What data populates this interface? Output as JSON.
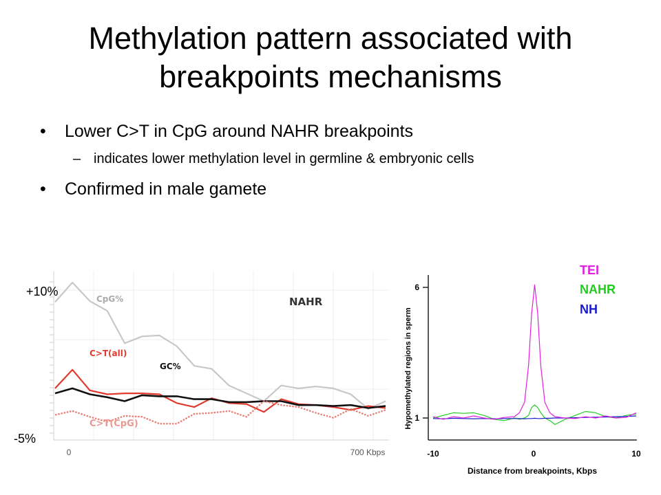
{
  "slide": {
    "title_line1": "Methylation pattern associated with",
    "title_line2": "breakpoints mechanisms",
    "bullets": [
      {
        "text": "Lower C>T in CpG around NAHR breakpoints",
        "sub": "indicates lower methylation level in germline & embryonic cells"
      },
      {
        "text": "Confirmed in male gamete"
      }
    ]
  },
  "chart_data": [
    {
      "type": "line",
      "title": "NAHR",
      "y_top_label": "+10%",
      "y_bottom_label": "-5%",
      "x_start_label": "0",
      "x_end_label": "700 Kbps",
      "grid": true,
      "x": [
        0,
        36.8,
        73.7,
        110.5,
        147.4,
        184.2,
        221.1,
        257.9,
        294.7,
        331.6,
        368.4,
        405.3,
        442.1,
        478.9,
        515.8,
        552.6,
        589.5,
        626.3,
        663.2,
        700
      ],
      "series": [
        {
          "name": "CpG%",
          "color": "#c8c8c8",
          "dashed": false,
          "values": [
            8.5,
            10.5,
            8.6,
            7.6,
            4.3,
            5.0,
            5.1,
            4.0,
            2.0,
            1.7,
            0.0,
            -0.8,
            -1.6,
            0.0,
            -0.3,
            -0.1,
            -0.3,
            -0.9,
            -2.4,
            -1.6
          ]
        },
        {
          "name": "C>T(all)",
          "color": "#e03a2e",
          "dashed": false,
          "values": [
            -0.3,
            1.6,
            -0.5,
            -0.9,
            -0.8,
            -0.8,
            -0.9,
            -1.8,
            -2.2,
            -1.3,
            -1.8,
            -1.9,
            -2.7,
            -1.4,
            -1.9,
            -2.0,
            -2.2,
            -2.5,
            -2.1,
            -2.3
          ]
        },
        {
          "name": "GC%",
          "color": "#111111",
          "dashed": false,
          "values": [
            -0.8,
            -0.3,
            -0.9,
            -1.2,
            -1.6,
            -1.0,
            -1.1,
            -1.1,
            -1.4,
            -1.4,
            -1.7,
            -1.7,
            -1.6,
            -1.6,
            -2.0,
            -2.0,
            -2.1,
            -2.0,
            -2.3,
            -2.1
          ]
        },
        {
          "name": "C>T(CpG)",
          "color": "#e87a70",
          "dashed": true,
          "values": [
            -3.0,
            -2.6,
            -3.2,
            -3.7,
            -3.1,
            -3.2,
            -3.9,
            -3.9,
            -2.9,
            -2.8,
            -2.6,
            -3.2,
            -1.6,
            -2.0,
            -2.2,
            -2.8,
            -3.3,
            -2.4,
            -3.1,
            -2.5
          ]
        }
      ]
    },
    {
      "type": "line",
      "xlabel": "Distance from breakpoints, Kbps",
      "ylabel": "Hypomethylated regions in sperm",
      "x_ticks": [
        "-10",
        "0",
        "10"
      ],
      "y_ticks": [
        "1",
        "6"
      ],
      "x": [
        -10,
        -9,
        -8,
        -7,
        -6,
        -5,
        -4,
        -3,
        -2,
        -1.5,
        -1,
        -0.6,
        -0.3,
        0,
        0.3,
        0.6,
        1,
        1.5,
        2,
        3,
        4,
        5,
        6,
        7,
        8,
        9,
        10
      ],
      "series": [
        {
          "name": "TEI",
          "color": "#e020e0",
          "values": [
            1.05,
            0.95,
            1.05,
            1.0,
            1.08,
            1.0,
            0.95,
            1.02,
            1.05,
            1.2,
            1.6,
            3.0,
            5.0,
            6.1,
            5.0,
            3.0,
            1.6,
            1.2,
            1.05,
            1.0,
            0.98,
            1.05,
            1.0,
            1.08,
            1.0,
            1.02,
            1.2
          ]
        },
        {
          "name": "NAHR",
          "color": "#22cc22",
          "values": [
            1.0,
            1.1,
            1.2,
            1.18,
            1.2,
            1.1,
            0.95,
            0.9,
            1.0,
            0.95,
            1.0,
            1.1,
            1.4,
            1.5,
            1.4,
            1.2,
            1.0,
            0.9,
            0.75,
            0.95,
            1.1,
            1.25,
            1.2,
            1.05,
            1.0,
            1.1,
            1.15
          ]
        },
        {
          "name": "NH",
          "color": "#1a1acc",
          "values": [
            0.98,
            0.97,
            0.99,
            0.98,
            0.97,
            0.98,
            0.97,
            0.98,
            0.98,
            0.98,
            0.97,
            0.98,
            0.98,
            0.99,
            0.98,
            0.98,
            0.99,
            0.99,
            1.0,
            1.0,
            1.01,
            1.02,
            1.03,
            1.04,
            1.05,
            1.06,
            1.08
          ]
        }
      ]
    }
  ]
}
